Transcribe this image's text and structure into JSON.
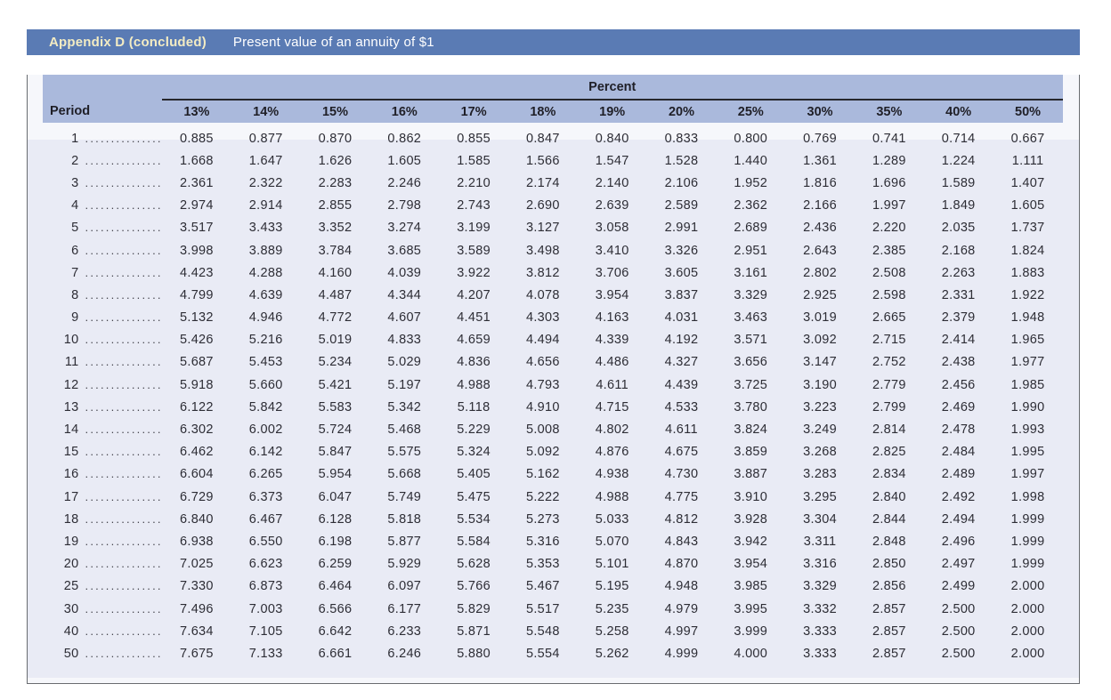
{
  "title_bar": {
    "label": "Appendix D (concluded)",
    "subtitle": "Present value of an annuity of $1"
  },
  "table": {
    "group_header": "Percent",
    "period_header": "Period",
    "leader_dots": ".................",
    "columns": [
      "13%",
      "14%",
      "15%",
      "16%",
      "17%",
      "18%",
      "19%",
      "20%",
      "25%",
      "30%",
      "35%",
      "40%",
      "50%"
    ],
    "rows": [
      {
        "period": "1",
        "values": [
          "0.885",
          "0.877",
          "0.870",
          "0.862",
          "0.855",
          "0.847",
          "0.840",
          "0.833",
          "0.800",
          "0.769",
          "0.741",
          "0.714",
          "0.667"
        ]
      },
      {
        "period": "2",
        "values": [
          "1.668",
          "1.647",
          "1.626",
          "1.605",
          "1.585",
          "1.566",
          "1.547",
          "1.528",
          "1.440",
          "1.361",
          "1.289",
          "1.224",
          "1.111"
        ]
      },
      {
        "period": "3",
        "values": [
          "2.361",
          "2.322",
          "2.283",
          "2.246",
          "2.210",
          "2.174",
          "2.140",
          "2.106",
          "1.952",
          "1.816",
          "1.696",
          "1.589",
          "1.407"
        ]
      },
      {
        "period": "4",
        "values": [
          "2.974",
          "2.914",
          "2.855",
          "2.798",
          "2.743",
          "2.690",
          "2.639",
          "2.589",
          "2.362",
          "2.166",
          "1.997",
          "1.849",
          "1.605"
        ]
      },
      {
        "period": "5",
        "values": [
          "3.517",
          "3.433",
          "3.352",
          "3.274",
          "3.199",
          "3.127",
          "3.058",
          "2.991",
          "2.689",
          "2.436",
          "2.220",
          "2.035",
          "1.737"
        ]
      },
      {
        "period": "6",
        "values": [
          "3.998",
          "3.889",
          "3.784",
          "3.685",
          "3.589",
          "3.498",
          "3.410",
          "3.326",
          "2.951",
          "2.643",
          "2.385",
          "2.168",
          "1.824"
        ]
      },
      {
        "period": "7",
        "values": [
          "4.423",
          "4.288",
          "4.160",
          "4.039",
          "3.922",
          "3.812",
          "3.706",
          "3.605",
          "3.161",
          "2.802",
          "2.508",
          "2.263",
          "1.883"
        ]
      },
      {
        "period": "8",
        "values": [
          "4.799",
          "4.639",
          "4.487",
          "4.344",
          "4.207",
          "4.078",
          "3.954",
          "3.837",
          "3.329",
          "2.925",
          "2.598",
          "2.331",
          "1.922"
        ]
      },
      {
        "period": "9",
        "values": [
          "5.132",
          "4.946",
          "4.772",
          "4.607",
          "4.451",
          "4.303",
          "4.163",
          "4.031",
          "3.463",
          "3.019",
          "2.665",
          "2.379",
          "1.948"
        ]
      },
      {
        "period": "10",
        "values": [
          "5.426",
          "5.216",
          "5.019",
          "4.833",
          "4.659",
          "4.494",
          "4.339",
          "4.192",
          "3.571",
          "3.092",
          "2.715",
          "2.414",
          "1.965"
        ]
      },
      {
        "period": "11",
        "values": [
          "5.687",
          "5.453",
          "5.234",
          "5.029",
          "4.836",
          "4.656",
          "4.486",
          "4.327",
          "3.656",
          "3.147",
          "2.752",
          "2.438",
          "1.977"
        ]
      },
      {
        "period": "12",
        "values": [
          "5.918",
          "5.660",
          "5.421",
          "5.197",
          "4.988",
          "4.793",
          "4.611",
          "4.439",
          "3.725",
          "3.190",
          "2.779",
          "2.456",
          "1.985"
        ]
      },
      {
        "period": "13",
        "values": [
          "6.122",
          "5.842",
          "5.583",
          "5.342",
          "5.118",
          "4.910",
          "4.715",
          "4.533",
          "3.780",
          "3.223",
          "2.799",
          "2.469",
          "1.990"
        ]
      },
      {
        "period": "14",
        "values": [
          "6.302",
          "6.002",
          "5.724",
          "5.468",
          "5.229",
          "5.008",
          "4.802",
          "4.611",
          "3.824",
          "3.249",
          "2.814",
          "2.478",
          "1.993"
        ]
      },
      {
        "period": "15",
        "values": [
          "6.462",
          "6.142",
          "5.847",
          "5.575",
          "5.324",
          "5.092",
          "4.876",
          "4.675",
          "3.859",
          "3.268",
          "2.825",
          "2.484",
          "1.995"
        ]
      },
      {
        "period": "16",
        "values": [
          "6.604",
          "6.265",
          "5.954",
          "5.668",
          "5.405",
          "5.162",
          "4.938",
          "4.730",
          "3.887",
          "3.283",
          "2.834",
          "2.489",
          "1.997"
        ]
      },
      {
        "period": "17",
        "values": [
          "6.729",
          "6.373",
          "6.047",
          "5.749",
          "5.475",
          "5.222",
          "4.988",
          "4.775",
          "3.910",
          "3.295",
          "2.840",
          "2.492",
          "1.998"
        ]
      },
      {
        "period": "18",
        "values": [
          "6.840",
          "6.467",
          "6.128",
          "5.818",
          "5.534",
          "5.273",
          "5.033",
          "4.812",
          "3.928",
          "3.304",
          "2.844",
          "2.494",
          "1.999"
        ]
      },
      {
        "period": "19",
        "values": [
          "6.938",
          "6.550",
          "6.198",
          "5.877",
          "5.584",
          "5.316",
          "5.070",
          "4.843",
          "3.942",
          "3.311",
          "2.848",
          "2.496",
          "1.999"
        ]
      },
      {
        "period": "20",
        "values": [
          "7.025",
          "6.623",
          "6.259",
          "5.929",
          "5.628",
          "5.353",
          "5.101",
          "4.870",
          "3.954",
          "3.316",
          "2.850",
          "2.497",
          "1.999"
        ]
      },
      {
        "period": "25",
        "values": [
          "7.330",
          "6.873",
          "6.464",
          "6.097",
          "5.766",
          "5.467",
          "5.195",
          "4.948",
          "3.985",
          "3.329",
          "2.856",
          "2.499",
          "2.000"
        ]
      },
      {
        "period": "30",
        "values": [
          "7.496",
          "7.003",
          "6.566",
          "6.177",
          "5.829",
          "5.517",
          "5.235",
          "4.979",
          "3.995",
          "3.332",
          "2.857",
          "2.500",
          "2.000"
        ]
      },
      {
        "period": "40",
        "values": [
          "7.634",
          "7.105",
          "6.642",
          "6.233",
          "5.871",
          "5.548",
          "5.258",
          "4.997",
          "3.999",
          "3.333",
          "2.857",
          "2.500",
          "2.000"
        ]
      },
      {
        "period": "50",
        "values": [
          "7.675",
          "7.133",
          "6.661",
          "6.246",
          "5.880",
          "5.554",
          "5.262",
          "4.999",
          "4.000",
          "3.333",
          "2.857",
          "2.500",
          "2.000"
        ]
      }
    ]
  },
  "colors": {
    "title_bar_bg": "#5a7bb4",
    "title_label": "#f3ecc3",
    "title_subtitle": "#ffffff",
    "header_band_bg": "#aab9dc",
    "data_area_bg": "#e9ebf5",
    "panel_border": "#696c70",
    "text": "#2d2d35"
  }
}
